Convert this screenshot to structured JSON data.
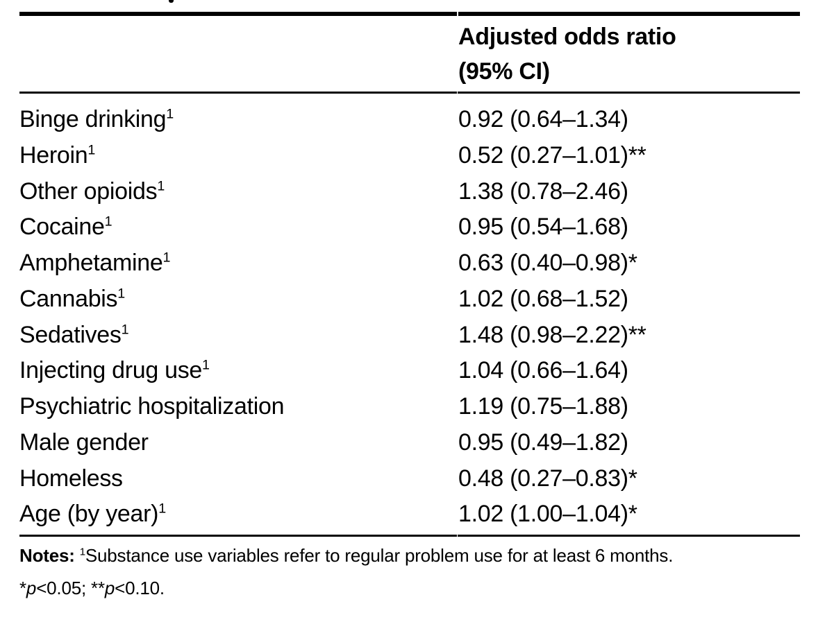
{
  "page": {
    "background_color": "#ffffff",
    "text_color": "#000000"
  },
  "artifact": {
    "description": "cropped fragment of caption text at top edge"
  },
  "table": {
    "header": {
      "col2_line1": "Adjusted odds ratio",
      "col2_line2": "(95% CI)"
    },
    "rows": [
      {
        "label": "Binge drinking",
        "sup": "1",
        "value": "0.92 (0.64–1.34)"
      },
      {
        "label": "Heroin",
        "sup": "1",
        "value": "0.52 (0.27–1.01)**"
      },
      {
        "label": "Other opioids",
        "sup": "1",
        "value": "1.38 (0.78–2.46)"
      },
      {
        "label": "Cocaine",
        "sup": "1",
        "value": "0.95 (0.54–1.68)"
      },
      {
        "label": "Amphetamine",
        "sup": "1",
        "value": "0.63 (0.40–0.98)*"
      },
      {
        "label": "Cannabis",
        "sup": "1",
        "value": "1.02 (0.68–1.52)"
      },
      {
        "label": "Sedatives",
        "sup": "1",
        "value": "1.48 (0.98–2.22)**"
      },
      {
        "label": "Injecting drug use",
        "sup": "1",
        "value": "1.04 (0.66–1.64)"
      },
      {
        "label": "Psychiatric hospitalization",
        "sup": "",
        "value": "1.19 (0.75–1.88)"
      },
      {
        "label": "Male gender",
        "sup": "",
        "value": "0.95 (0.49–1.82)"
      },
      {
        "label": "Homeless",
        "sup": "",
        "value": "0.48 (0.27–0.83)*"
      },
      {
        "label": "Age (by year)",
        "sup": "1",
        "value": "1.02 (1.00–1.04)*"
      }
    ]
  },
  "notes": {
    "label": "Notes:",
    "superscript": "1",
    "line1": "Substance use variables refer to regular problem use for at least 6 months.",
    "line2_parts": [
      "*",
      "p",
      "<0.05; **",
      "p",
      "<0.10."
    ]
  }
}
